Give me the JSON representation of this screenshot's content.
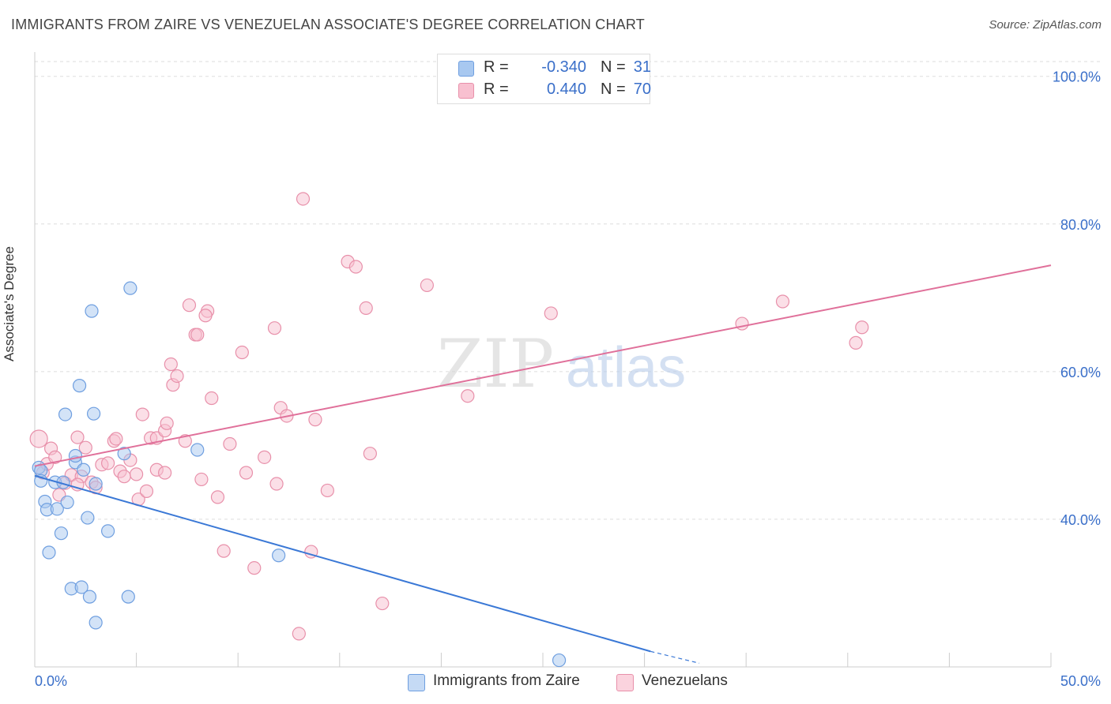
{
  "title": "IMMIGRANTS FROM ZAIRE VS VENEZUELAN ASSOCIATE'S DEGREE CORRELATION CHART",
  "source": "Source: ZipAtlas.com",
  "watermark": {
    "part1": "ZIP",
    "part2": "atlas"
  },
  "legend": {
    "rows": [
      {
        "r_label": "R =",
        "r_value": "-0.340",
        "n_label": "N =",
        "n_value": "31",
        "color": "#a8c8f0",
        "border": "#6f9fe0"
      },
      {
        "r_label": "R =",
        "r_value": "0.440",
        "n_label": "N =",
        "n_value": "70",
        "color": "#f8c0d0",
        "border": "#e890aa"
      }
    ]
  },
  "bottom_legend": [
    {
      "label": "Immigrants from Zaire",
      "color": "#c5daf5",
      "border": "#6f9fe0"
    },
    {
      "label": "Venezuelans",
      "color": "#fbd3de",
      "border": "#e890aa"
    }
  ],
  "chart_data": {
    "type": "scatter",
    "title": "IMMIGRANTS FROM ZAIRE VS VENEZUELAN ASSOCIATE'S DEGREE CORRELATION CHART",
    "xlabel": "",
    "ylabel": "Associate's Degree",
    "xlim": [
      0,
      50
    ],
    "ylim": [
      20,
      102
    ],
    "x_tick_labels": {
      "min": "0.0%",
      "max": "50.0%"
    },
    "y_ticks": [
      {
        "value": 40,
        "label": "40.0%"
      },
      {
        "value": 60,
        "label": "60.0%"
      },
      {
        "value": 80,
        "label": "80.0%"
      },
      {
        "value": 100,
        "label": "100.0%"
      }
    ],
    "grid": true,
    "legend_position": "top-center",
    "series": [
      {
        "name": "Immigrants from Zaire",
        "color": "#6f9fe0",
        "fill": "#a8c8f0",
        "trend": {
          "x": [
            0,
            30.3
          ],
          "y": [
            45.9,
            22.1
          ],
          "dash_to": [
            32.7,
            20.5
          ],
          "color": "#3a78d6"
        },
        "points": [
          [
            0.2,
            47.0
          ],
          [
            0.3,
            46.6
          ],
          [
            0.3,
            45.2
          ],
          [
            0.5,
            42.4
          ],
          [
            0.6,
            41.3
          ],
          [
            0.7,
            35.5
          ],
          [
            1.0,
            45.0
          ],
          [
            1.1,
            41.4
          ],
          [
            1.3,
            38.1
          ],
          [
            1.4,
            45.0
          ],
          [
            1.5,
            54.2
          ],
          [
            1.6,
            42.3
          ],
          [
            1.8,
            30.6
          ],
          [
            2.0,
            47.7
          ],
          [
            2.0,
            48.6
          ],
          [
            2.2,
            58.1
          ],
          [
            2.3,
            30.8
          ],
          [
            2.4,
            46.7
          ],
          [
            2.6,
            40.2
          ],
          [
            2.7,
            29.5
          ],
          [
            2.8,
            68.2
          ],
          [
            2.9,
            54.3
          ],
          [
            3.0,
            26.0
          ],
          [
            3.6,
            38.4
          ],
          [
            4.4,
            48.9
          ],
          [
            4.6,
            29.5
          ],
          [
            4.7,
            71.3
          ],
          [
            3.0,
            44.8
          ],
          [
            8.0,
            49.4
          ],
          [
            12.0,
            35.1
          ],
          [
            25.8,
            20.9
          ]
        ]
      },
      {
        "name": "Venezuelans",
        "color": "#e890aa",
        "fill": "#f8c0d0",
        "trend": {
          "x": [
            0,
            50
          ],
          "y": [
            47.2,
            74.4
          ],
          "color": "#e0709a"
        },
        "points": [
          [
            0.2,
            50.9
          ],
          [
            0.4,
            46.3
          ],
          [
            0.6,
            47.5
          ],
          [
            0.8,
            49.6
          ],
          [
            1.0,
            48.4
          ],
          [
            1.2,
            43.3
          ],
          [
            1.5,
            44.9
          ],
          [
            1.8,
            46.0
          ],
          [
            2.1,
            51.1
          ],
          [
            2.3,
            45.8
          ],
          [
            2.5,
            49.7
          ],
          [
            2.8,
            45.0
          ],
          [
            3.0,
            44.3
          ],
          [
            3.3,
            47.4
          ],
          [
            3.6,
            47.6
          ],
          [
            3.9,
            50.6
          ],
          [
            4.0,
            50.9
          ],
          [
            4.2,
            46.5
          ],
          [
            4.4,
            45.8
          ],
          [
            4.7,
            48.0
          ],
          [
            5.0,
            46.1
          ],
          [
            5.1,
            42.7
          ],
          [
            5.3,
            54.2
          ],
          [
            5.5,
            43.8
          ],
          [
            5.7,
            51.0
          ],
          [
            6.0,
            51.0
          ],
          [
            6.0,
            46.7
          ],
          [
            6.4,
            52.0
          ],
          [
            6.5,
            53.0
          ],
          [
            6.7,
            61.0
          ],
          [
            6.8,
            58.2
          ],
          [
            7.0,
            59.4
          ],
          [
            7.6,
            69.0
          ],
          [
            7.9,
            65.0
          ],
          [
            7.4,
            50.6
          ],
          [
            8.2,
            45.4
          ],
          [
            8.5,
            68.2
          ],
          [
            8.4,
            67.6
          ],
          [
            8.7,
            56.4
          ],
          [
            9.0,
            43.0
          ],
          [
            9.3,
            35.7
          ],
          [
            9.6,
            50.2
          ],
          [
            10.2,
            62.6
          ],
          [
            10.4,
            46.3
          ],
          [
            10.8,
            33.4
          ],
          [
            11.3,
            48.4
          ],
          [
            11.8,
            65.9
          ],
          [
            11.9,
            44.8
          ],
          [
            12.1,
            55.1
          ],
          [
            12.4,
            54.0
          ],
          [
            13.0,
            24.5
          ],
          [
            13.2,
            83.4
          ],
          [
            13.6,
            35.6
          ],
          [
            13.8,
            53.5
          ],
          [
            14.4,
            43.9
          ],
          [
            15.4,
            74.9
          ],
          [
            15.8,
            74.2
          ],
          [
            16.3,
            68.6
          ],
          [
            16.5,
            48.9
          ],
          [
            17.1,
            28.6
          ],
          [
            19.3,
            71.7
          ],
          [
            21.3,
            56.7
          ],
          [
            25.4,
            67.9
          ],
          [
            34.8,
            66.5
          ],
          [
            36.8,
            69.5
          ],
          [
            40.4,
            63.9
          ],
          [
            40.7,
            66.0
          ],
          [
            2.1,
            44.7
          ],
          [
            8.0,
            65.0
          ],
          [
            6.4,
            46.3
          ]
        ]
      }
    ]
  }
}
